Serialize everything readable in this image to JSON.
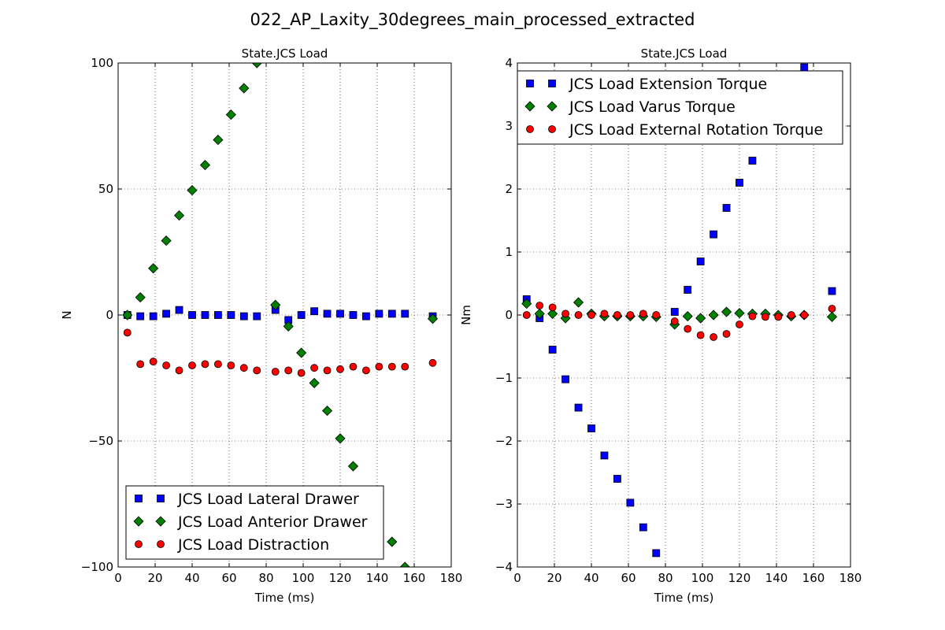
{
  "figure": {
    "title": "022_AP_Laxity_30degrees_main_processed_extracted"
  },
  "chart_data": [
    {
      "type": "scatter",
      "title": "State.JCS Load",
      "xlabel": "Time (ms)",
      "ylabel": "N",
      "xlim": [
        0,
        180
      ],
      "ylim": [
        -100,
        100
      ],
      "xticks": [
        0,
        20,
        40,
        60,
        80,
        100,
        120,
        140,
        160,
        180
      ],
      "yticks": [
        -100,
        -50,
        0,
        50,
        100
      ],
      "grid": true,
      "legend_position": "lower-left",
      "series": [
        {
          "name": "JCS Load Lateral Drawer",
          "marker": "square",
          "color": "#0000ff",
          "points": [
            [
              5,
              0
            ],
            [
              12,
              -0.5
            ],
            [
              19,
              -0.5
            ],
            [
              26,
              0.5
            ],
            [
              33,
              2
            ],
            [
              40,
              0
            ],
            [
              47,
              0
            ],
            [
              54,
              0
            ],
            [
              61,
              0
            ],
            [
              68,
              -0.5
            ],
            [
              75,
              -0.5
            ],
            [
              85,
              2
            ],
            [
              92,
              -2
            ],
            [
              99,
              0
            ],
            [
              106,
              1.5
            ],
            [
              113,
              0.5
            ],
            [
              120,
              0.5
            ],
            [
              127,
              0
            ],
            [
              134,
              -0.5
            ],
            [
              141,
              0.5
            ],
            [
              148,
              0.5
            ],
            [
              155,
              0.5
            ],
            [
              170,
              -0.5
            ]
          ]
        },
        {
          "name": "JCS Load Anterior Drawer",
          "marker": "diamond",
          "color": "#008000",
          "points": [
            [
              5,
              0
            ],
            [
              12,
              7
            ],
            [
              19,
              18.5
            ],
            [
              26,
              29.5
            ],
            [
              33,
              39.5
            ],
            [
              40,
              49.5
            ],
            [
              47,
              59.5
            ],
            [
              54,
              69.5
            ],
            [
              61,
              79.5
            ],
            [
              68,
              90
            ],
            [
              75,
              100
            ],
            [
              85,
              4
            ],
            [
              92,
              -4.5
            ],
            [
              99,
              -15
            ],
            [
              106,
              -27
            ],
            [
              113,
              -38
            ],
            [
              120,
              -49
            ],
            [
              127,
              -60
            ],
            [
              148,
              -90
            ],
            [
              155,
              -100
            ],
            [
              170,
              -1.5
            ]
          ]
        },
        {
          "name": "JCS Load Distraction",
          "marker": "circle",
          "color": "#ff0000",
          "points": [
            [
              5,
              -7
            ],
            [
              12,
              -19.5
            ],
            [
              19,
              -18.5
            ],
            [
              26,
              -20
            ],
            [
              33,
              -22
            ],
            [
              40,
              -20
            ],
            [
              47,
              -19.5
            ],
            [
              54,
              -19.5
            ],
            [
              61,
              -20
            ],
            [
              68,
              -21
            ],
            [
              75,
              -22
            ],
            [
              85,
              -22.5
            ],
            [
              92,
              -22
            ],
            [
              99,
              -23
            ],
            [
              106,
              -21
            ],
            [
              113,
              -22
            ],
            [
              120,
              -21.5
            ],
            [
              127,
              -20.5
            ],
            [
              134,
              -22
            ],
            [
              141,
              -20.5
            ],
            [
              148,
              -20.5
            ],
            [
              155,
              -20.5
            ],
            [
              170,
              -19
            ]
          ]
        }
      ]
    },
    {
      "type": "scatter",
      "title": "State.JCS Load",
      "xlabel": "Time (ms)",
      "ylabel": "Nm",
      "xlim": [
        0,
        180
      ],
      "ylim": [
        -4,
        4
      ],
      "xticks": [
        0,
        20,
        40,
        60,
        80,
        100,
        120,
        140,
        160,
        180
      ],
      "yticks": [
        -4,
        -3,
        -2,
        -1,
        0,
        1,
        2,
        3,
        4
      ],
      "grid": true,
      "legend_position": "upper-left",
      "series": [
        {
          "name": "JCS Load Extension Torque",
          "marker": "square",
          "color": "#0000ff",
          "points": [
            [
              5,
              0.25
            ],
            [
              12,
              -0.05
            ],
            [
              19,
              -0.55
            ],
            [
              26,
              -1.02
            ],
            [
              33,
              -1.47
            ],
            [
              40,
              -1.8
            ],
            [
              47,
              -2.23
            ],
            [
              54,
              -2.6
            ],
            [
              61,
              -2.98
            ],
            [
              68,
              -3.37
            ],
            [
              75,
              -3.78
            ],
            [
              85,
              0.05
            ],
            [
              92,
              0.4
            ],
            [
              99,
              0.85
            ],
            [
              106,
              1.28
            ],
            [
              113,
              1.7
            ],
            [
              120,
              2.1
            ],
            [
              127,
              2.45
            ],
            [
              155,
              3.93
            ],
            [
              170,
              0.38
            ]
          ]
        },
        {
          "name": "JCS Load Varus Torque",
          "marker": "diamond",
          "color": "#008000",
          "points": [
            [
              5,
              0.18
            ],
            [
              12,
              0.02
            ],
            [
              19,
              0.02
            ],
            [
              26,
              -0.05
            ],
            [
              33,
              0.2
            ],
            [
              40,
              0.02
            ],
            [
              47,
              -0.02
            ],
            [
              54,
              -0.02
            ],
            [
              61,
              -0.02
            ],
            [
              68,
              -0.02
            ],
            [
              75,
              -0.03
            ],
            [
              85,
              -0.15
            ],
            [
              92,
              -0.02
            ],
            [
              99,
              -0.05
            ],
            [
              106,
              0
            ],
            [
              113,
              0.05
            ],
            [
              120,
              0.03
            ],
            [
              127,
              0.02
            ],
            [
              134,
              0.02
            ],
            [
              141,
              0
            ],
            [
              148,
              -0.02
            ],
            [
              155,
              0
            ],
            [
              170,
              -0.03
            ]
          ]
        },
        {
          "name": "JCS Load External Rotation Torque",
          "marker": "circle",
          "color": "#ff0000",
          "points": [
            [
              5,
              0
            ],
            [
              12,
              0.15
            ],
            [
              19,
              0.12
            ],
            [
              26,
              0.02
            ],
            [
              33,
              0
            ],
            [
              40,
              0
            ],
            [
              47,
              0.02
            ],
            [
              54,
              0
            ],
            [
              61,
              0
            ],
            [
              68,
              0.02
            ],
            [
              75,
              0
            ],
            [
              85,
              -0.1
            ],
            [
              92,
              -0.22
            ],
            [
              99,
              -0.32
            ],
            [
              106,
              -0.35
            ],
            [
              113,
              -0.3
            ],
            [
              120,
              -0.15
            ],
            [
              127,
              -0.02
            ],
            [
              134,
              -0.03
            ],
            [
              141,
              -0.03
            ],
            [
              148,
              0
            ],
            [
              155,
              0
            ],
            [
              170,
              0.1
            ]
          ]
        }
      ]
    }
  ]
}
